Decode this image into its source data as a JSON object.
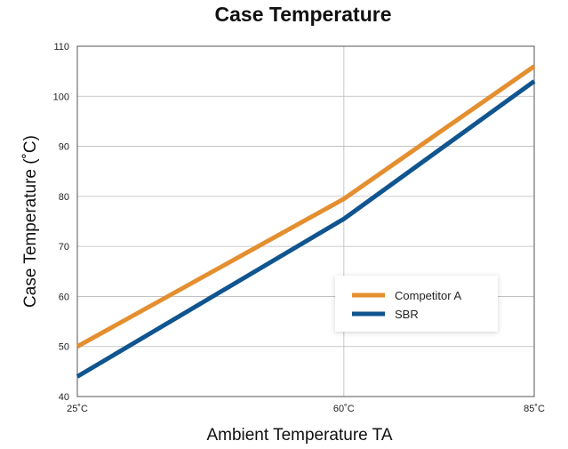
{
  "colors": {
    "competitor": "#e48f2f",
    "sbr": "#10558f"
  },
  "chart_data": {
    "type": "line",
    "title": "Case Temperature",
    "xlabel": "Ambient Temperature TA",
    "ylabel": "Case Temperature (˚C)",
    "x": [
      25,
      60,
      85
    ],
    "x_tick_labels": [
      "25˚C",
      "60˚C",
      "85˚C"
    ],
    "xlim": [
      25,
      85
    ],
    "ylim": [
      40,
      110
    ],
    "y_ticks": [
      40,
      50,
      60,
      70,
      80,
      90,
      100,
      110
    ],
    "grid": true,
    "legend_position": "right",
    "series": [
      {
        "name": "Competitor A",
        "color": "#e48f2f",
        "values": [
          50,
          79.5,
          106
        ]
      },
      {
        "name": "SBR",
        "color": "#10558f",
        "values": [
          44,
          75.5,
          103
        ]
      }
    ]
  }
}
